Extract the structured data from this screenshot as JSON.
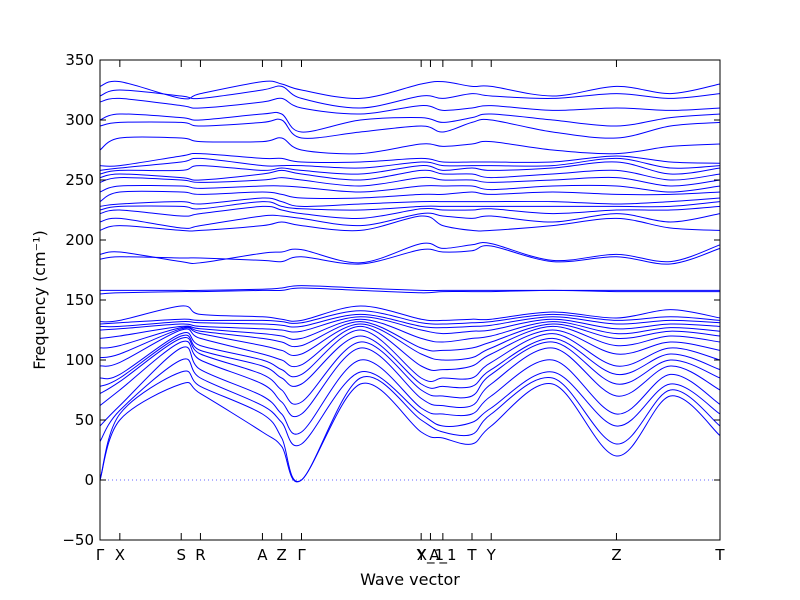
{
  "chart_data": {
    "type": "line",
    "title": "",
    "xlabel": "Wave vector",
    "ylabel": "Frequency (cm⁻¹)",
    "ylim": [
      -50,
      350
    ],
    "yticks": [
      -50,
      0,
      50,
      100,
      150,
      200,
      250,
      300,
      350
    ],
    "grid": false,
    "line_color": "#0000ff",
    "zero_line_color": "#6666ff",
    "xlim": [
      0,
      1
    ],
    "xticks": [
      {
        "label": "Γ",
        "x": 0.0
      },
      {
        "label": "X",
        "x": 0.032
      },
      {
        "label": "S",
        "x": 0.131
      },
      {
        "label": "R",
        "x": 0.162
      },
      {
        "label": "A",
        "x": 0.262
      },
      {
        "label": "Z",
        "x": 0.293
      },
      {
        "label": "Γ",
        "x": 0.325
      },
      {
        "label": "Y",
        "x": 0.518
      },
      {
        "label": "X_1",
        "x": 0.533
      },
      {
        "label": "A_1",
        "x": 0.553
      },
      {
        "label": "T",
        "x": 0.6
      },
      {
        "label": "Y",
        "x": 0.631
      },
      {
        "label": "Z",
        "x": 0.833
      },
      {
        "label": "T",
        "x": 1.0
      }
    ],
    "band_knots_x": [
      0.0,
      0.032,
      0.131,
      0.162,
      0.262,
      0.293,
      0.325,
      0.42,
      0.518,
      0.553,
      0.6,
      0.631,
      0.73,
      0.833,
      0.92,
      1.0
    ],
    "bands": [
      [
        0,
        50,
        80,
        72,
        40,
        28,
        0,
        80,
        40,
        35,
        30,
        45,
        80,
        20,
        70,
        37
      ],
      [
        0,
        55,
        90,
        78,
        55,
        35,
        0,
        85,
        50,
        40,
        38,
        55,
        85,
        30,
        75,
        45
      ],
      [
        32,
        58,
        100,
        85,
        62,
        48,
        30,
        90,
        55,
        45,
        48,
        60,
        90,
        45,
        80,
        55
      ],
      [
        45,
        62,
        110,
        92,
        70,
        55,
        40,
        100,
        60,
        55,
        55,
        70,
        100,
        55,
        88,
        63
      ],
      [
        62,
        75,
        115,
        100,
        80,
        65,
        55,
        110,
        68,
        62,
        62,
        80,
        110,
        70,
        95,
        75
      ],
      [
        72,
        82,
        118,
        105,
        88,
        75,
        65,
        115,
        75,
        70,
        70,
        88,
        115,
        80,
        100,
        85
      ],
      [
        78,
        85,
        120,
        108,
        95,
        85,
        80,
        120,
        80,
        78,
        78,
        92,
        118,
        88,
        105,
        92
      ],
      [
        85,
        88,
        122,
        112,
        100,
        92,
        88,
        125,
        85,
        85,
        85,
        98,
        122,
        95,
        110,
        100
      ],
      [
        95,
        98,
        125,
        118,
        105,
        100,
        96,
        128,
        95,
        92,
        95,
        105,
        125,
        105,
        115,
        108
      ],
      [
        102,
        105,
        126,
        122,
        112,
        108,
        105,
        130,
        105,
        100,
        102,
        110,
        128,
        112,
        120,
        115
      ],
      [
        110,
        112,
        127,
        124,
        118,
        115,
        112,
        132,
        110,
        108,
        110,
        115,
        130,
        118,
        124,
        120
      ],
      [
        118,
        120,
        128,
        126,
        122,
        120,
        118,
        134,
        118,
        115,
        118,
        120,
        132,
        122,
        127,
        124
      ],
      [
        125,
        126,
        130,
        128,
        126,
        125,
        124,
        136,
        125,
        122,
        124,
        125,
        134,
        126,
        130,
        128
      ],
      [
        128,
        128,
        132,
        131,
        130,
        129,
        128,
        138,
        128,
        127,
        128,
        129,
        136,
        130,
        133,
        131
      ],
      [
        130,
        131,
        134,
        133,
        133,
        132,
        131,
        141,
        131,
        130,
        131,
        132,
        138,
        133,
        136,
        133
      ],
      [
        132,
        133,
        145,
        138,
        136,
        134,
        133,
        145,
        134,
        133,
        134,
        134,
        140,
        135,
        142,
        135
      ],
      [
        155,
        156,
        157,
        157,
        158,
        158,
        160,
        158,
        156,
        157,
        157,
        157,
        158,
        157,
        157,
        157
      ],
      [
        158,
        158,
        158,
        158,
        159,
        160,
        162,
        160,
        158,
        158,
        158,
        158,
        158,
        158,
        158,
        158
      ],
      [
        184,
        186,
        185,
        185,
        183,
        182,
        186,
        180,
        192,
        190,
        191,
        195,
        182,
        186,
        180,
        193
      ],
      [
        188,
        190,
        182,
        181,
        189,
        190,
        192,
        181,
        197,
        193,
        196,
        197,
        183,
        188,
        182,
        196
      ],
      [
        208,
        212,
        208,
        208,
        212,
        215,
        212,
        208,
        220,
        212,
        208,
        208,
        212,
        218,
        210,
        208
      ],
      [
        215,
        218,
        210,
        212,
        220,
        220,
        218,
        212,
        222,
        220,
        218,
        220,
        215,
        222,
        215,
        222
      ],
      [
        222,
        225,
        220,
        222,
        228,
        225,
        222,
        218,
        226,
        225,
        225,
        226,
        222,
        225,
        225,
        228
      ],
      [
        225,
        228,
        228,
        226,
        232,
        228,
        226,
        225,
        228,
        228,
        228,
        228,
        228,
        228,
        228,
        232
      ],
      [
        228,
        230,
        232,
        230,
        235,
        232,
        228,
        230,
        232,
        232,
        232,
        232,
        232,
        230,
        232,
        235
      ],
      [
        232,
        240,
        240,
        238,
        240,
        238,
        235,
        235,
        238,
        238,
        240,
        238,
        240,
        238,
        238,
        240
      ],
      [
        240,
        245,
        245,
        243,
        245,
        245,
        244,
        240,
        245,
        245,
        245,
        242,
        245,
        245,
        240,
        245
      ],
      [
        248,
        252,
        250,
        248,
        250,
        252,
        250,
        245,
        252,
        250,
        250,
        248,
        250,
        252,
        245,
        250
      ],
      [
        252,
        255,
        252,
        250,
        255,
        258,
        255,
        250,
        258,
        255,
        255,
        252,
        255,
        258,
        250,
        255
      ],
      [
        255,
        258,
        258,
        262,
        258,
        260,
        258,
        255,
        262,
        258,
        260,
        258,
        260,
        265,
        255,
        260
      ],
      [
        258,
        260,
        265,
        268,
        262,
        262,
        262,
        260,
        265,
        262,
        262,
        262,
        262,
        268,
        260,
        262
      ],
      [
        262,
        262,
        270,
        272,
        268,
        268,
        265,
        265,
        268,
        265,
        265,
        265,
        265,
        270,
        265,
        264
      ],
      [
        275,
        285,
        285,
        282,
        282,
        285,
        275,
        272,
        280,
        278,
        280,
        282,
        275,
        272,
        278,
        280
      ],
      [
        295,
        298,
        298,
        295,
        298,
        300,
        285,
        290,
        295,
        290,
        298,
        300,
        290,
        285,
        295,
        298
      ],
      [
        300,
        305,
        302,
        300,
        305,
        305,
        290,
        300,
        302,
        298,
        302,
        305,
        300,
        295,
        302,
        305
      ],
      [
        315,
        318,
        312,
        310,
        315,
        318,
        310,
        305,
        312,
        308,
        310,
        312,
        308,
        310,
        308,
        310
      ],
      [
        320,
        325,
        320,
        318,
        325,
        328,
        318,
        310,
        320,
        318,
        322,
        320,
        318,
        322,
        318,
        322
      ],
      [
        328,
        332,
        318,
        322,
        332,
        330,
        325,
        318,
        330,
        332,
        328,
        328,
        320,
        328,
        322,
        330
      ]
    ]
  }
}
